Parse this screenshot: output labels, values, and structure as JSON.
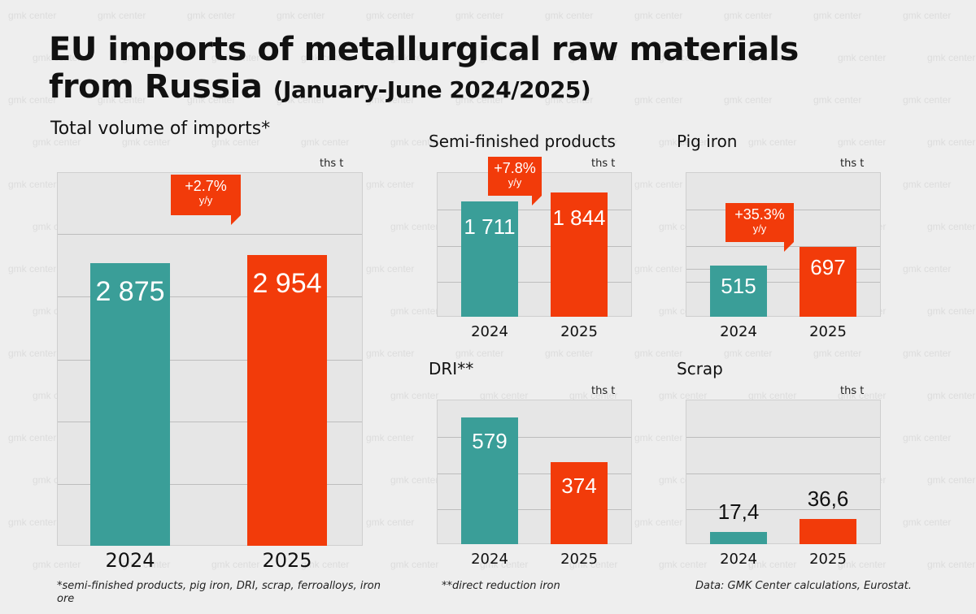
{
  "title_main": "EU imports of metallurgical raw materials",
  "title_line2_main": "from Russia",
  "title_line2_sub": "(January-June 2024/2025)",
  "colors": {
    "y2024": "#3a9e98",
    "y2025": "#f23b0a"
  },
  "watermark": "gmk center",
  "chart_data": [
    {
      "type": "bar",
      "title": "Total volume of imports*",
      "unit": "ths t",
      "categories": [
        "2024",
        "2025"
      ],
      "values": [
        2875,
        2954
      ],
      "labels": [
        "2 875",
        "2 954"
      ],
      "ylim": [
        0,
        3800
      ],
      "change": {
        "pct": "+2.7%",
        "yy": "y/y"
      }
    },
    {
      "type": "bar",
      "title": "Semi-finished products",
      "unit": "ths t",
      "categories": [
        "2024",
        "2025"
      ],
      "values": [
        1711,
        1844
      ],
      "labels": [
        "1 711",
        "1 844"
      ],
      "ylim": [
        0,
        2150
      ],
      "change": {
        "pct": "+7.8%",
        "yy": "y/y"
      }
    },
    {
      "type": "bar",
      "title": "Pig iron",
      "unit": "ths t",
      "categories": [
        "2024",
        "2025"
      ],
      "values": [
        515,
        697
      ],
      "labels": [
        "515",
        "697"
      ],
      "ylim": [
        0,
        1450
      ],
      "change": {
        "pct": "+35.3%",
        "yy": "y/y"
      }
    },
    {
      "type": "bar",
      "title": "DRI**",
      "unit": "ths t",
      "categories": [
        "2024",
        "2025"
      ],
      "values": [
        579,
        374
      ],
      "labels": [
        "579",
        "374"
      ],
      "ylim": [
        0,
        660
      ]
    },
    {
      "type": "bar",
      "title": "Scrap",
      "unit": "ths t",
      "categories": [
        "2024",
        "2025"
      ],
      "values": [
        17.4,
        36.6
      ],
      "labels": [
        "17,4",
        "36,6"
      ],
      "ylim": [
        0,
        210
      ]
    }
  ],
  "footnotes": {
    "left": "*semi-finished products, pig iron, DRI, scrap, ferroalloys, iron ore",
    "middle": "**direct reduction iron",
    "right": "Data: GMK Center calculations, Eurostat."
  }
}
